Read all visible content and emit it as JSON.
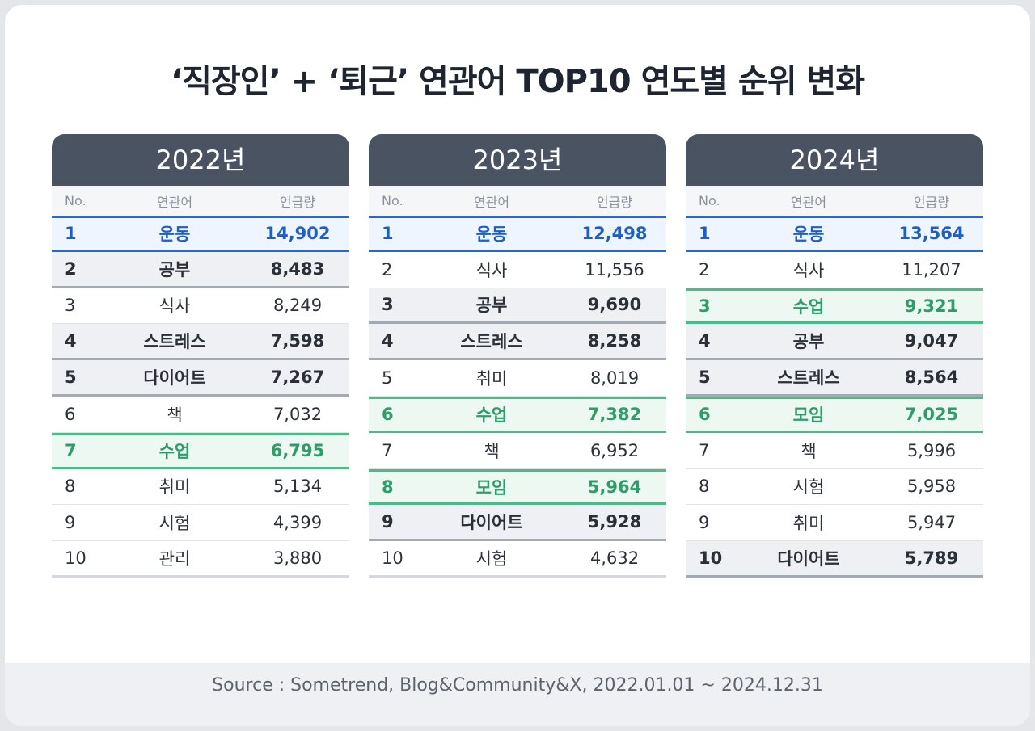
{
  "chart_data": {
    "type": "table",
    "title": "‘직장인’ + ‘퇴근’ 연관어 TOP10 연도별 순위 변화",
    "columns": [
      "No.",
      "연관어",
      "언급량"
    ],
    "tables": [
      {
        "year": "2022년",
        "rows": [
          {
            "no": "1",
            "keyword": "운동",
            "count": "14,902",
            "style": "blue"
          },
          {
            "no": "2",
            "keyword": "공부",
            "count": "8,483",
            "style": "bold"
          },
          {
            "no": "3",
            "keyword": "식사",
            "count": "8,249",
            "style": "plain"
          },
          {
            "no": "4",
            "keyword": "스트레스",
            "count": "7,598",
            "style": "bold"
          },
          {
            "no": "5",
            "keyword": "다이어트",
            "count": "7,267",
            "style": "bold"
          },
          {
            "no": "6",
            "keyword": "책",
            "count": "7,032",
            "style": "plain"
          },
          {
            "no": "7",
            "keyword": "수업",
            "count": "6,795",
            "style": "green"
          },
          {
            "no": "8",
            "keyword": "취미",
            "count": "5,134",
            "style": "plain"
          },
          {
            "no": "9",
            "keyword": "시험",
            "count": "4,399",
            "style": "plain"
          },
          {
            "no": "10",
            "keyword": "관리",
            "count": "3,880",
            "style": "plain"
          }
        ]
      },
      {
        "year": "2023년",
        "rows": [
          {
            "no": "1",
            "keyword": "운동",
            "count": "12,498",
            "style": "blue"
          },
          {
            "no": "2",
            "keyword": "식사",
            "count": "11,556",
            "style": "plain"
          },
          {
            "no": "3",
            "keyword": "공부",
            "count": "9,690",
            "style": "bold"
          },
          {
            "no": "4",
            "keyword": "스트레스",
            "count": "8,258",
            "style": "bold"
          },
          {
            "no": "5",
            "keyword": "취미",
            "count": "8,019",
            "style": "plain"
          },
          {
            "no": "6",
            "keyword": "수업",
            "count": "7,382",
            "style": "green"
          },
          {
            "no": "7",
            "keyword": "책",
            "count": "6,952",
            "style": "plain"
          },
          {
            "no": "8",
            "keyword": "모임",
            "count": "5,964",
            "style": "green"
          },
          {
            "no": "9",
            "keyword": "다이어트",
            "count": "5,928",
            "style": "bold"
          },
          {
            "no": "10",
            "keyword": "시험",
            "count": "4,632",
            "style": "plain"
          }
        ]
      },
      {
        "year": "2024년",
        "rows": [
          {
            "no": "1",
            "keyword": "운동",
            "count": "13,564",
            "style": "blue"
          },
          {
            "no": "2",
            "keyword": "식사",
            "count": "11,207",
            "style": "plain"
          },
          {
            "no": "3",
            "keyword": "수업",
            "count": "9,321",
            "style": "green"
          },
          {
            "no": "4",
            "keyword": "공부",
            "count": "9,047",
            "style": "bold"
          },
          {
            "no": "5",
            "keyword": "스트레스",
            "count": "8,564",
            "style": "bold"
          },
          {
            "no": "6",
            "keyword": "모임",
            "count": "7,025",
            "style": "green"
          },
          {
            "no": "7",
            "keyword": "책",
            "count": "5,996",
            "style": "plain"
          },
          {
            "no": "8",
            "keyword": "시험",
            "count": "5,958",
            "style": "plain"
          },
          {
            "no": "9",
            "keyword": "취미",
            "count": "5,947",
            "style": "plain"
          },
          {
            "no": "10",
            "keyword": "다이어트",
            "count": "5,789",
            "style": "bold"
          }
        ]
      }
    ],
    "source": "Source : Sometrend, Blog&Community&X, 2022.01.01 ~ 2024.12.31"
  },
  "colors": {
    "header_bg": "#4a5361",
    "highlight_blue": "#1e5fc7",
    "highlight_green": "#2e9d6a"
  }
}
